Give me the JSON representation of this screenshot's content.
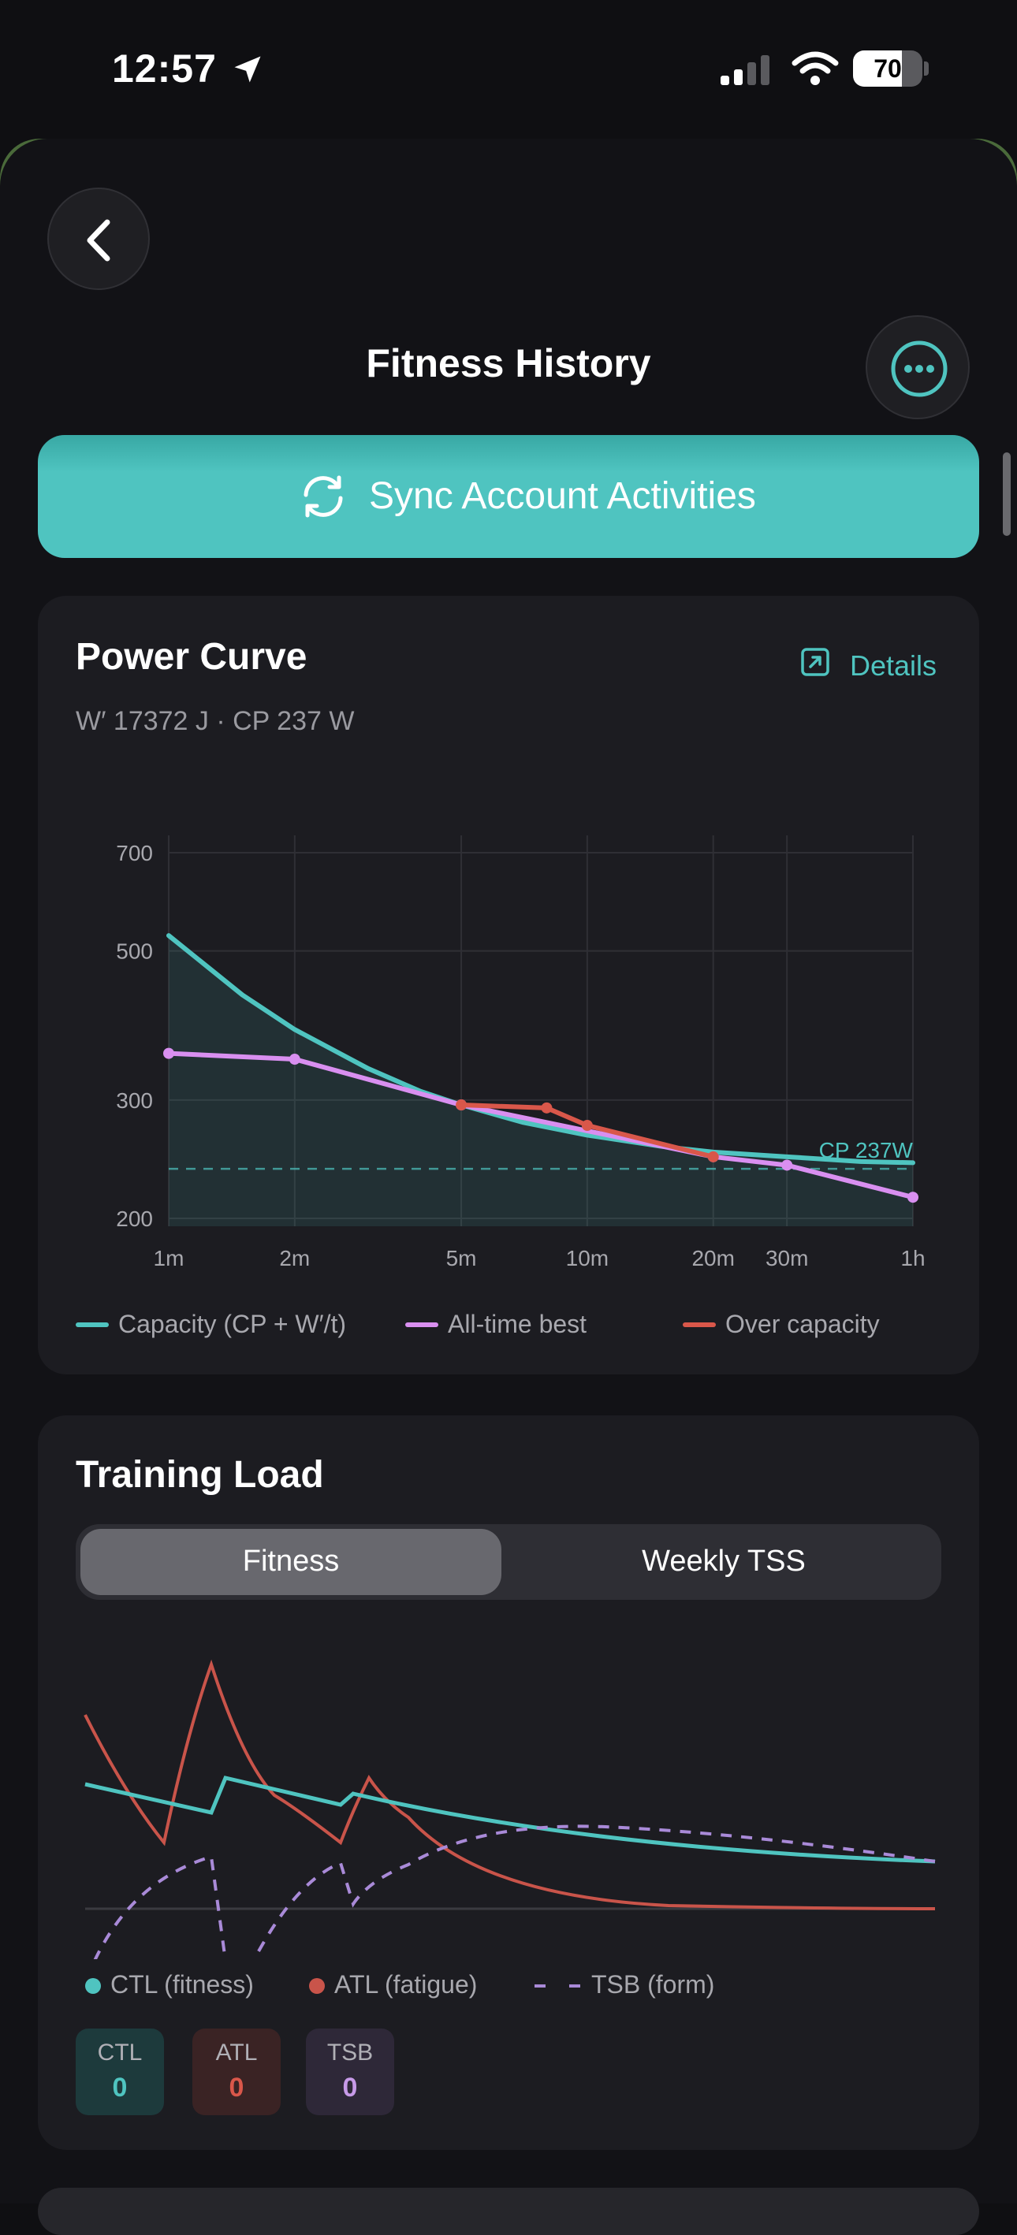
{
  "status_bar": {
    "time": "12:57",
    "battery": "70",
    "battery_level": 0.7
  },
  "header": {
    "title": "Fitness History"
  },
  "sync_button": {
    "label": "Sync Account Activities"
  },
  "power_curve": {
    "title": "Power Curve",
    "details_label": "Details",
    "subtitle": "W′ 17372 J · CP 237 W",
    "cp_label": "CP 237W",
    "legend": [
      "Capacity (CP + W′/t)",
      "All-time best",
      "Over capacity"
    ],
    "colors": {
      "capacity": "#4fc4c0",
      "best": "#d98ff0",
      "over": "#d9574a"
    }
  },
  "chart_data": {
    "type": "line",
    "x_scale": "log",
    "x_unit": "seconds",
    "x_ticks": [
      {
        "value": 60,
        "label": "1m"
      },
      {
        "value": 120,
        "label": "2m"
      },
      {
        "value": 300,
        "label": "5m"
      },
      {
        "value": 600,
        "label": "10m"
      },
      {
        "value": 1200,
        "label": "20m"
      },
      {
        "value": 1800,
        "label": "30m"
      },
      {
        "value": 3600,
        "label": "1h"
      }
    ],
    "y_scale": "log",
    "y_ticks": [
      200,
      300,
      500,
      700
    ],
    "ylim": [
      200,
      700
    ],
    "cp": 237,
    "w_prime": 17372,
    "series": [
      {
        "name": "Capacity (CP + W′/t)",
        "x": [
          60,
          90,
          120,
          180,
          240,
          300,
          420,
          600,
          900,
          1200,
          1800,
          2700,
          3600
        ],
        "values": [
          527,
          430,
          382,
          334,
          309,
          295,
          278,
          266,
          256,
          251,
          247,
          243,
          242
        ]
      },
      {
        "name": "All-time best",
        "x": [
          60,
          120,
          300,
          1200,
          1800,
          3600
        ],
        "values": [
          352,
          345,
          295,
          247,
          240,
          215
        ]
      },
      {
        "name": "Over capacity",
        "x": [
          300,
          480,
          600,
          1200
        ],
        "values": [
          295,
          292,
          275,
          247
        ]
      }
    ],
    "grid": true
  },
  "training_load": {
    "title": "Training Load",
    "tabs": [
      "Fitness",
      "Weekly TSS"
    ],
    "active_tab": "Fitness",
    "legend": [
      "CTL (fitness)",
      "ATL (fatigue)",
      "TSB (form)"
    ],
    "colors": {
      "ctl": "#4fc4c0",
      "atl": "#c9544a",
      "tsb": "#a98ad8"
    },
    "pills": [
      {
        "label": "CTL",
        "value": "0"
      },
      {
        "label": "ATL",
        "value": "0"
      },
      {
        "label": "TSB",
        "value": "0"
      }
    ]
  }
}
